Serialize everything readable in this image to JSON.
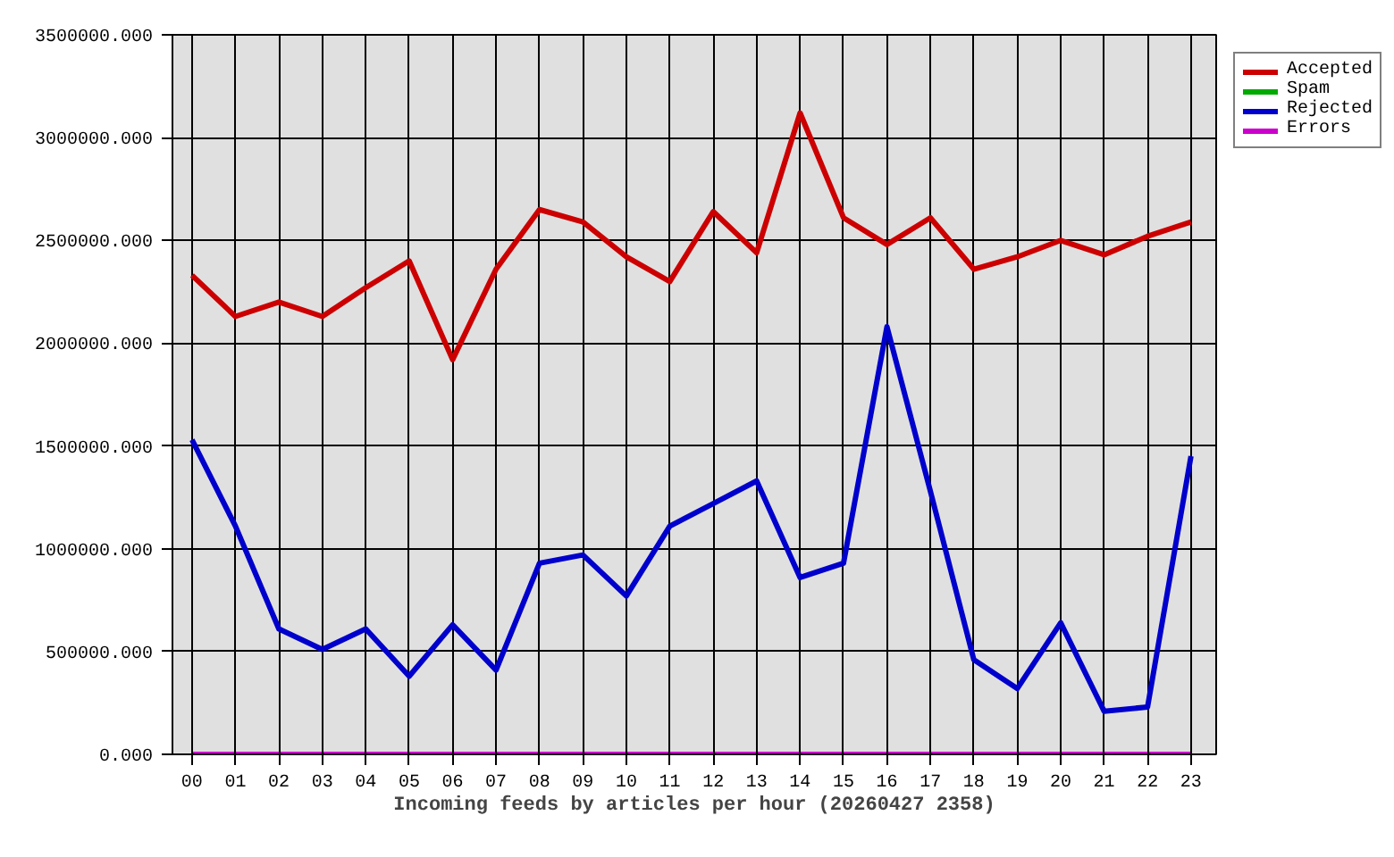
{
  "chart_data": {
    "type": "line",
    "xlabel": "Incoming feeds by articles per hour (20260427 2358)",
    "categories": [
      "00",
      "01",
      "02",
      "03",
      "04",
      "05",
      "06",
      "07",
      "08",
      "09",
      "10",
      "11",
      "12",
      "13",
      "14",
      "15",
      "16",
      "17",
      "18",
      "19",
      "20",
      "21",
      "22",
      "23"
    ],
    "series": [
      {
        "name": "Accepted",
        "color": "#cc0000",
        "values": [
          2330000,
          2130000,
          2200000,
          2130000,
          2270000,
          2400000,
          1920000,
          2360000,
          2650000,
          2590000,
          2420000,
          2300000,
          2640000,
          2440000,
          3120000,
          2610000,
          2480000,
          2610000,
          2360000,
          2420000,
          2500000,
          2430000,
          2520000,
          2590000
        ]
      },
      {
        "name": "Spam",
        "color": "#00aa00",
        "values": [
          null,
          null,
          null,
          null,
          null,
          null,
          null,
          null,
          null,
          null,
          null,
          null,
          null,
          null,
          null,
          null,
          null,
          null,
          null,
          null,
          null,
          null,
          null,
          null
        ]
      },
      {
        "name": "Rejected",
        "color": "#0000cc",
        "values": [
          1530000,
          1110000,
          610000,
          510000,
          610000,
          380000,
          630000,
          410000,
          930000,
          970000,
          770000,
          1110000,
          1220000,
          1330000,
          860000,
          930000,
          2080000,
          1280000,
          460000,
          320000,
          640000,
          210000,
          230000,
          1450000
        ]
      },
      {
        "name": "Errors",
        "color": "#cc00cc",
        "values": [
          0,
          0,
          0,
          0,
          0,
          0,
          0,
          0,
          0,
          0,
          0,
          0,
          0,
          0,
          0,
          0,
          0,
          0,
          0,
          0,
          0,
          0,
          0,
          0
        ]
      }
    ],
    "ylim": [
      0,
      3500000
    ],
    "yticks": [
      {
        "value": 0,
        "label": "0.000"
      },
      {
        "value": 500000,
        "label": "500000.000"
      },
      {
        "value": 1000000,
        "label": "1000000.000"
      },
      {
        "value": 1500000,
        "label": "1500000.000"
      },
      {
        "value": 2000000,
        "label": "2000000.000"
      },
      {
        "value": 2500000,
        "label": "2500000.000"
      },
      {
        "value": 3000000,
        "label": "3000000.000"
      },
      {
        "value": 3500000,
        "label": "3500000.000"
      }
    ],
    "grid": true,
    "legend": "top right",
    "marker": "none",
    "line_style": "solid"
  }
}
